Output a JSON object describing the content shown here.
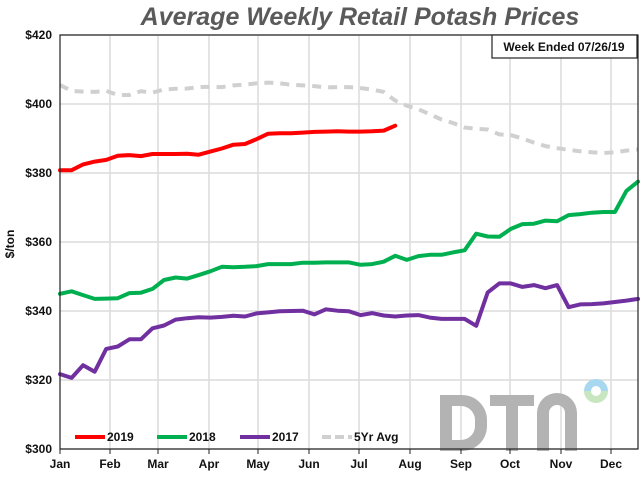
{
  "chart_data": {
    "type": "line",
    "title": "Average Weekly Retail Potash Prices",
    "annotation": "Week Ended 07/26/19",
    "ylabel": "$/ton",
    "xlabel": "",
    "ylim": [
      300,
      420
    ],
    "yticks": [
      "$300",
      "$320",
      "$340",
      "$360",
      "$380",
      "$400",
      "$420"
    ],
    "xticks": [
      "Jan",
      "Feb",
      "Mar",
      "Apr",
      "May",
      "Jun",
      "Jul",
      "Aug",
      "Sep",
      "Oct",
      "Nov",
      "Dec"
    ],
    "x_frequency": "weekly",
    "grid": true,
    "legend_position": "bottom-left",
    "series": [
      {
        "name": "2019",
        "color": "#ff0000",
        "dash": false,
        "values": [
          380.8,
          380.8,
          382.5,
          383.3,
          383.8,
          385,
          385.2,
          384.9,
          385.5,
          385.5,
          385.5,
          385.6,
          385.3,
          386.2,
          387.1,
          388.2,
          388.4,
          389.8,
          391.4,
          391.5,
          391.5,
          391.7,
          391.9,
          392,
          392.1,
          392,
          392,
          392.1,
          392.3,
          393.7
        ]
      },
      {
        "name": "2018",
        "color": "#00b050",
        "dash": false,
        "values": [
          345,
          345.7,
          344.6,
          343.5,
          343.6,
          343.7,
          345.2,
          345.3,
          346.4,
          349,
          349.7,
          349.4,
          350.4,
          351.5,
          352.8,
          352.7,
          352.8,
          353,
          353.6,
          353.6,
          353.6,
          354,
          354,
          354.1,
          354.1,
          354.1,
          353.4,
          353.6,
          354.3,
          356,
          354.8,
          355.9,
          356.3,
          356.3,
          357,
          357.6,
          362.4,
          361.6,
          361.5,
          363.8,
          365.2,
          365.3,
          366.2,
          366,
          367.8,
          368.1,
          368.5,
          368.7,
          368.7,
          374.8,
          377.5
        ]
      },
      {
        "name": "2017",
        "color": "#7030a0",
        "dash": false,
        "values": [
          321.7,
          320.6,
          324.3,
          322.4,
          329,
          329.7,
          331.8,
          331.8,
          335,
          335.8,
          337.5,
          337.9,
          338.2,
          338.1,
          338.3,
          338.6,
          338.4,
          339.3,
          339.6,
          339.9,
          340,
          340.1,
          339,
          340.5,
          340.1,
          339.9,
          338.8,
          339.4,
          338.7,
          338.4,
          338.7,
          338.8,
          338.1,
          337.7,
          337.7,
          337.7,
          335.7,
          345.4,
          348,
          348,
          347,
          347.5,
          346.6,
          347.5,
          341.1,
          341.9,
          342,
          342.2,
          342.6,
          343,
          343.5
        ]
      },
      {
        "name": "5Yr Avg",
        "color": "#d0d0d0",
        "dash": true,
        "values": [
          405.5,
          403.8,
          403.6,
          403.5,
          403.8,
          402.6,
          402.6,
          403.7,
          403.3,
          404.2,
          404.4,
          404.5,
          404.9,
          405,
          404.9,
          405.4,
          405.6,
          406,
          406.2,
          406,
          405.6,
          405.4,
          405.2,
          404.8,
          404.9,
          404.9,
          404.6,
          404.2,
          403.5,
          401,
          399.5,
          398.5,
          397,
          395.5,
          394.5,
          393.2,
          392.8,
          392.6,
          391.2,
          391,
          390,
          388.8,
          387.8,
          387.2,
          386.7,
          386.3,
          386,
          385.8,
          386,
          386.5,
          386.8
        ]
      }
    ]
  },
  "logo": {
    "text": "DTN",
    "colors": [
      "#b3b3b3",
      "#a8d8f0",
      "#c8e6c0"
    ]
  }
}
